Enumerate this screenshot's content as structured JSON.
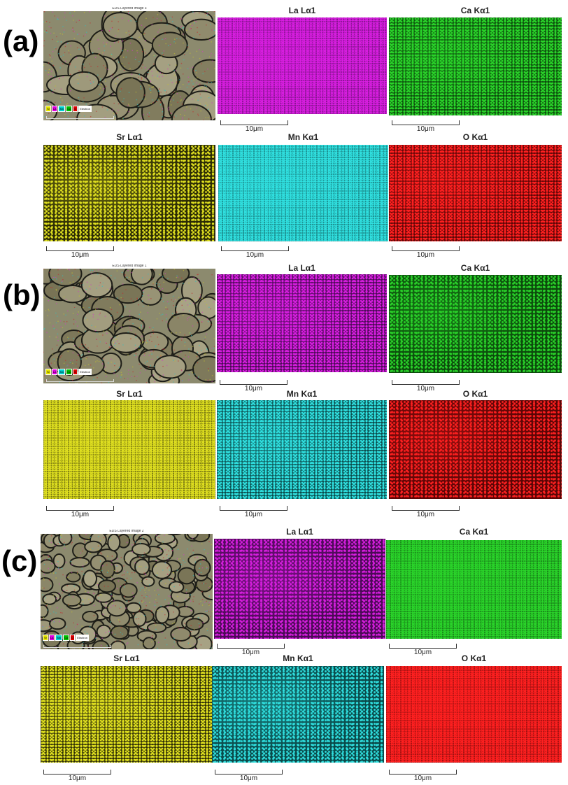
{
  "panels": [
    {
      "label": "(a)",
      "sem_title": "EDS Layered Image 3"
    },
    {
      "label": "(b)",
      "sem_title": "EDS Layered Image 1"
    },
    {
      "label": "(c)",
      "sem_title": "EDS Layered Image 2"
    }
  ],
  "sem_legend": [
    "Sr",
    "La",
    "Mn",
    "Ca",
    "O",
    "Electron"
  ],
  "sem_legend_colors": [
    "#e6e600",
    "#e000e0",
    "#00d0d0",
    "#00c000",
    "#e00000",
    "#ffffff"
  ],
  "sem_scale": "10μm",
  "maps": [
    {
      "title": "La Lα1",
      "color": "#d81ee0",
      "dark": "#4a0a55"
    },
    {
      "title": "Ca Kα1",
      "color": "#2ad42a",
      "dark": "#0c4a0c"
    },
    {
      "title": "Sr Lα1",
      "color": "#e0e020",
      "dark": "#2a2a05"
    },
    {
      "title": "Mn Kα1",
      "color": "#30e0e0",
      "dark": "#0a4a4a"
    },
    {
      "title": "O Kα1",
      "color": "#ff2020",
      "dark": "#5a0505"
    }
  ],
  "scale_label": "10μm"
}
